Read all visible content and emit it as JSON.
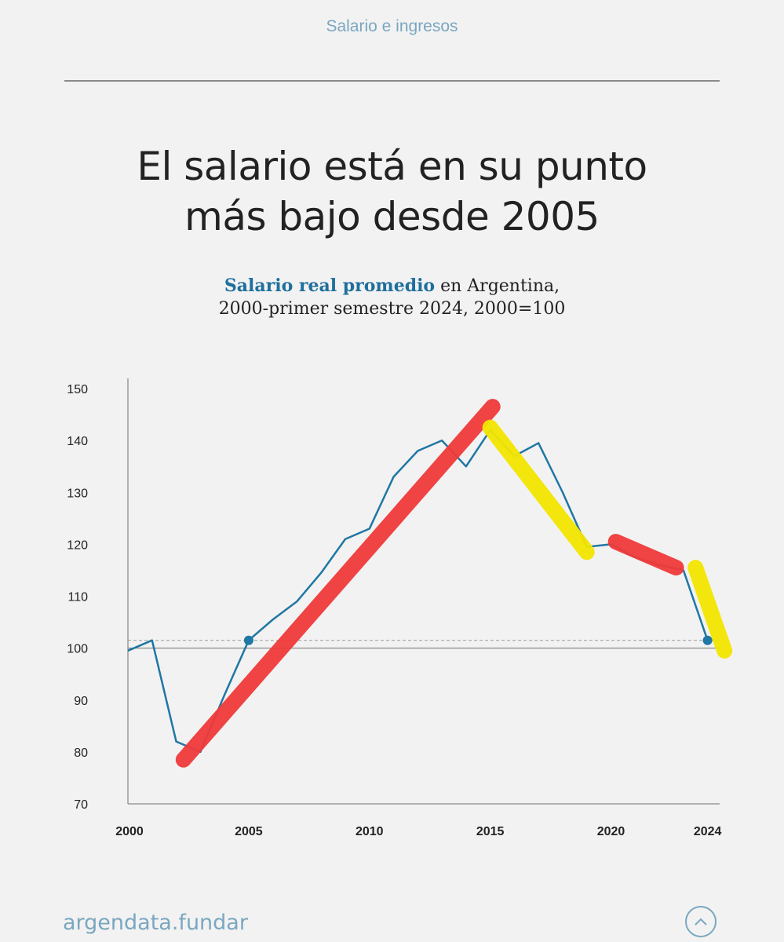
{
  "header": {
    "category": "Salario e ingresos",
    "headline_line1": "El salario está en su punto",
    "headline_line2": "más bajo desde 2005"
  },
  "subtitle": {
    "highlight": "Salario real promedio",
    "rest_line1": " en Argentina,",
    "line2": "2000-primer semestre 2024, 2000=100"
  },
  "footer": {
    "brand": "argendata.fundar",
    "scroll_icon": "chevron-up-icon"
  },
  "colors": {
    "series": "#1f77a4",
    "highlight": "#1f6f9c",
    "marker_red": "#f03a3a",
    "marker_yellow": "#f2e600",
    "accent": "#7aa7c0"
  },
  "chart_data": {
    "type": "line",
    "title": "Salario real promedio en Argentina, 2000-primer semestre 2024, 2000=100",
    "xlabel": "",
    "ylabel": "",
    "xlim": [
      2000,
      2024.5
    ],
    "ylim": [
      70,
      150
    ],
    "x_ticks": [
      "2000",
      "2005",
      "2010",
      "2015",
      "2020",
      "2024"
    ],
    "y_ticks": [
      70,
      80,
      90,
      100,
      110,
      120,
      130,
      140,
      150
    ],
    "reference_line": 100,
    "dashed_reference": 101.5,
    "grid": false,
    "series": [
      {
        "x": [
          2000,
          2001,
          2002,
          2003,
          2004,
          2005,
          2006,
          2007,
          2008,
          2009,
          2010,
          2011,
          2012,
          2013,
          2014,
          2015,
          2016,
          2017,
          2018,
          2019,
          2020,
          2021,
          2022,
          2023,
          2024
        ],
        "values": [
          99.5,
          101.5,
          82,
          80,
          91,
          101.5,
          105.5,
          109,
          114.5,
          121,
          123,
          133,
          138,
          140,
          135,
          142,
          137,
          139.5,
          130,
          119.5,
          120,
          117.5,
          116,
          115,
          101.5
        ]
      }
    ],
    "highlighted_points": [
      {
        "x": 2005,
        "y": 101.5
      },
      {
        "x": 2024,
        "y": 101.5
      }
    ],
    "annotations": [
      {
        "color": "red",
        "from": [
          2002.3,
          78.5
        ],
        "to": [
          2015.1,
          146.5
        ]
      },
      {
        "color": "yellow",
        "from": [
          2015,
          142.5
        ],
        "to": [
          2019,
          118.5
        ]
      },
      {
        "color": "red",
        "from": [
          2020.2,
          120.5
        ],
        "to": [
          2022.7,
          115.5
        ]
      },
      {
        "color": "yellow",
        "from": [
          2023.5,
          115.5
        ],
        "to": [
          2024.7,
          99.5
        ]
      }
    ]
  }
}
